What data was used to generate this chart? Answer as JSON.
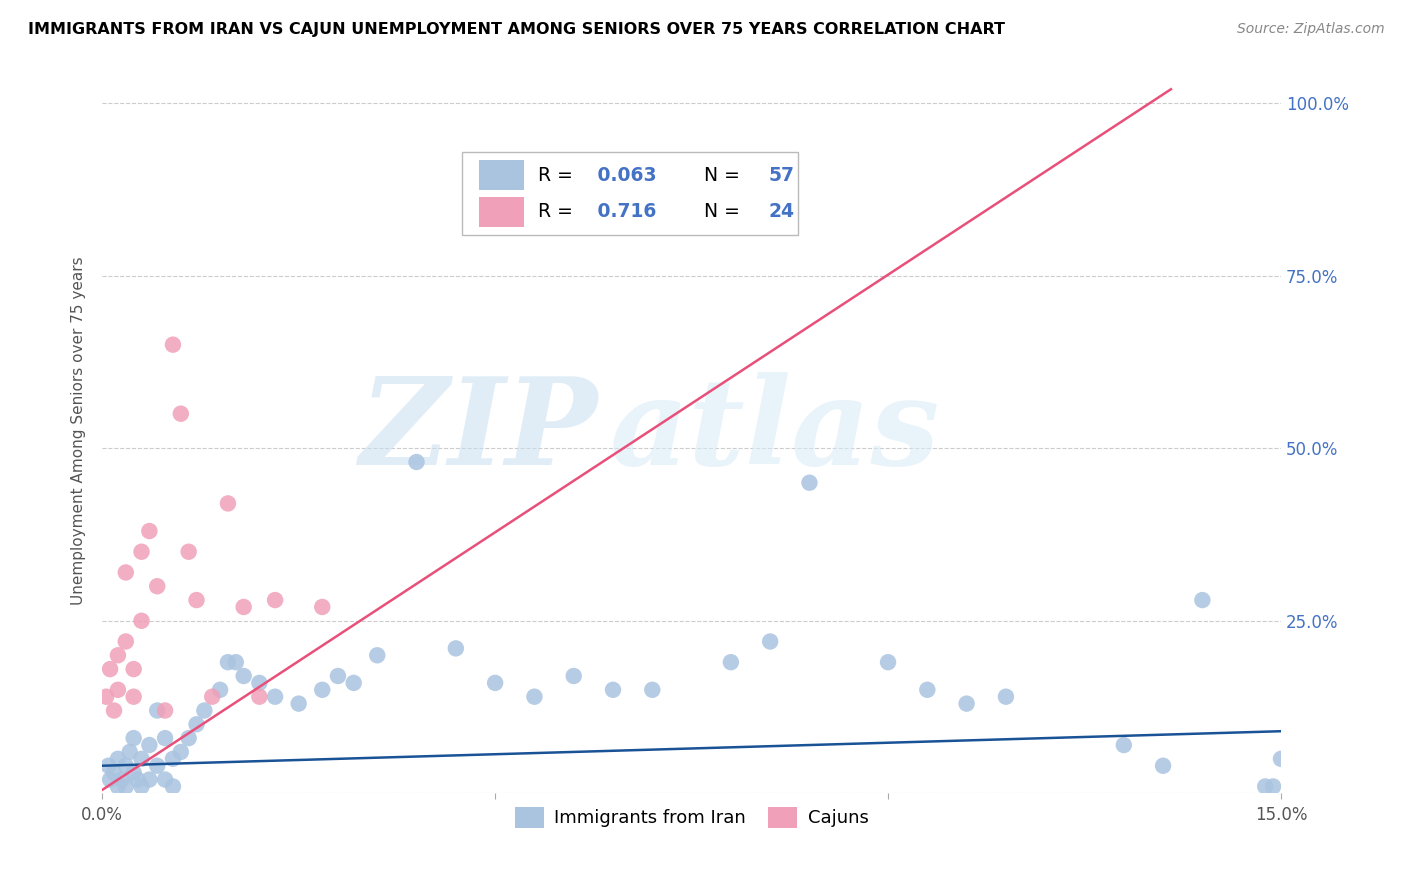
{
  "title": "IMMIGRANTS FROM IRAN VS CAJUN UNEMPLOYMENT AMONG SENIORS OVER 75 YEARS CORRELATION CHART",
  "source": "Source: ZipAtlas.com",
  "ylabel": "Unemployment Among Seniors over 75 years",
  "xlim": [
    0,
    0.15
  ],
  "ylim": [
    0,
    1.05
  ],
  "xticks": [
    0.0,
    0.05,
    0.1,
    0.15
  ],
  "xtick_labels": [
    "0.0%",
    "",
    "",
    "15.0%"
  ],
  "yticks": [
    0.0,
    0.25,
    0.5,
    0.75,
    1.0
  ],
  "right_ytick_labels": [
    "",
    "25.0%",
    "50.0%",
    "75.0%",
    "100.0%"
  ],
  "watermark_zip": "ZIP",
  "watermark_atlas": "atlas",
  "blue_color": "#aac4e0",
  "pink_color": "#f0a0b8",
  "line_blue_color": "#1a5296",
  "line_pink_color": "#e8507a",
  "iran_R": 0.063,
  "iran_N": 57,
  "cajun_R": 0.716,
  "cajun_N": 24,
  "blue_line_x": [
    0.0,
    0.15
  ],
  "blue_line_y": [
    0.04,
    0.09
  ],
  "pink_line_x": [
    0.0,
    0.136
  ],
  "pink_line_y": [
    0.005,
    1.02
  ],
  "iran_x": [
    0.0008,
    0.001,
    0.0015,
    0.002,
    0.002,
    0.0025,
    0.003,
    0.003,
    0.0035,
    0.004,
    0.004,
    0.0045,
    0.005,
    0.005,
    0.006,
    0.006,
    0.007,
    0.007,
    0.008,
    0.008,
    0.009,
    0.009,
    0.01,
    0.011,
    0.012,
    0.013,
    0.015,
    0.016,
    0.017,
    0.018,
    0.02,
    0.022,
    0.025,
    0.028,
    0.03,
    0.032,
    0.035,
    0.04,
    0.045,
    0.05,
    0.055,
    0.06,
    0.065,
    0.07,
    0.08,
    0.085,
    0.09,
    0.1,
    0.105,
    0.11,
    0.115,
    0.13,
    0.135,
    0.14,
    0.148,
    0.149,
    0.15
  ],
  "iran_y": [
    0.04,
    0.02,
    0.03,
    0.05,
    0.01,
    0.02,
    0.04,
    0.01,
    0.06,
    0.03,
    0.08,
    0.02,
    0.05,
    0.01,
    0.07,
    0.02,
    0.12,
    0.04,
    0.08,
    0.02,
    0.05,
    0.01,
    0.06,
    0.08,
    0.1,
    0.12,
    0.15,
    0.19,
    0.19,
    0.17,
    0.16,
    0.14,
    0.13,
    0.15,
    0.17,
    0.16,
    0.2,
    0.48,
    0.21,
    0.16,
    0.14,
    0.17,
    0.15,
    0.15,
    0.19,
    0.22,
    0.45,
    0.19,
    0.15,
    0.13,
    0.14,
    0.07,
    0.04,
    0.28,
    0.01,
    0.01,
    0.05
  ],
  "cajun_x": [
    0.0005,
    0.001,
    0.0015,
    0.002,
    0.002,
    0.003,
    0.003,
    0.004,
    0.004,
    0.005,
    0.005,
    0.006,
    0.007,
    0.008,
    0.009,
    0.01,
    0.011,
    0.012,
    0.014,
    0.016,
    0.018,
    0.02,
    0.022,
    0.028
  ],
  "cajun_y": [
    0.14,
    0.18,
    0.12,
    0.15,
    0.2,
    0.22,
    0.32,
    0.18,
    0.14,
    0.25,
    0.35,
    0.38,
    0.3,
    0.12,
    0.65,
    0.55,
    0.35,
    0.28,
    0.14,
    0.42,
    0.27,
    0.14,
    0.28,
    0.27
  ]
}
